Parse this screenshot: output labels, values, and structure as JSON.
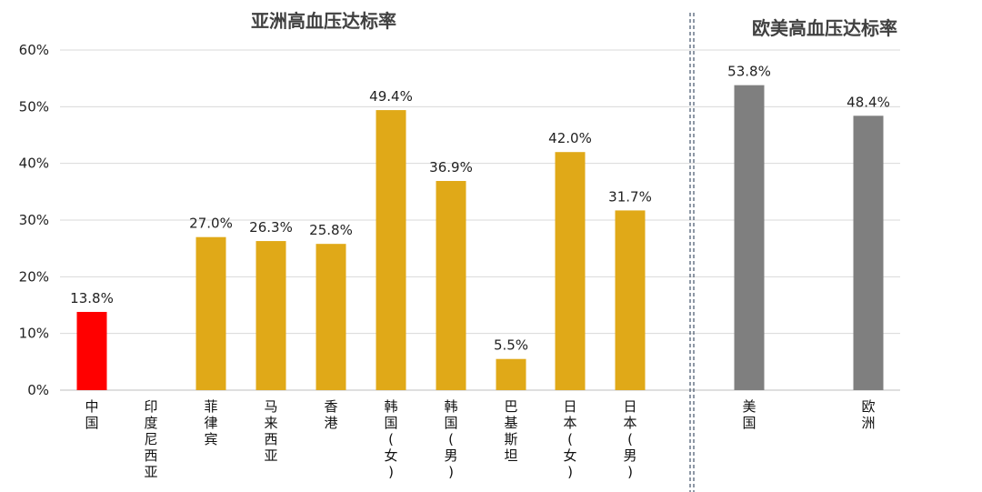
{
  "chart_data": {
    "type": "bar",
    "titles": {
      "asia": "亚洲高血压达标率",
      "west": "欧美高血压达标率"
    },
    "y_axis": {
      "ylim": [
        0,
        60
      ],
      "ticks": [
        "0%",
        "10%",
        "20%",
        "30%",
        "40%",
        "50%",
        "60%"
      ],
      "tick_values": [
        0,
        10,
        20,
        30,
        40,
        50,
        60
      ]
    },
    "groups": [
      {
        "name": "asia",
        "categories": [
          {
            "label": "中国",
            "value": 13.8,
            "value_label": "13.8%",
            "color": "#ff0000"
          },
          {
            "label": "印度尼西亚",
            "value": null,
            "value_label": "",
            "color": "#e0a918"
          },
          {
            "label": "菲律宾",
            "value": 27.0,
            "value_label": "27.0%",
            "color": "#e0a918"
          },
          {
            "label": "马来西亚",
            "value": 26.3,
            "value_label": "26.3%",
            "color": "#e0a918"
          },
          {
            "label": "香港",
            "value": 25.8,
            "value_label": "25.8%",
            "color": "#e0a918"
          },
          {
            "label": "韩国(女)",
            "value": 49.4,
            "value_label": "49.4%",
            "color": "#e0a918"
          },
          {
            "label": "韩国(男)",
            "value": 36.9,
            "value_label": "36.9%",
            "color": "#e0a918"
          },
          {
            "label": "巴基斯坦",
            "value": 5.5,
            "value_label": "5.5%",
            "color": "#e0a918"
          },
          {
            "label": "日本(女)",
            "value": 42.0,
            "value_label": "42.0%",
            "color": "#e0a918"
          },
          {
            "label": "日本(男)",
            "value": 31.7,
            "value_label": "31.7%",
            "color": "#e0a918"
          }
        ]
      },
      {
        "name": "west",
        "categories": [
          {
            "label": "美国",
            "value": 53.8,
            "value_label": "53.8%",
            "color": "#7f7f7f"
          },
          {
            "label": "欧洲",
            "value": 48.4,
            "value_label": "48.4%",
            "color": "#7f7f7f"
          }
        ]
      }
    ],
    "grid": true,
    "separator": "dashed-double-vertical"
  }
}
